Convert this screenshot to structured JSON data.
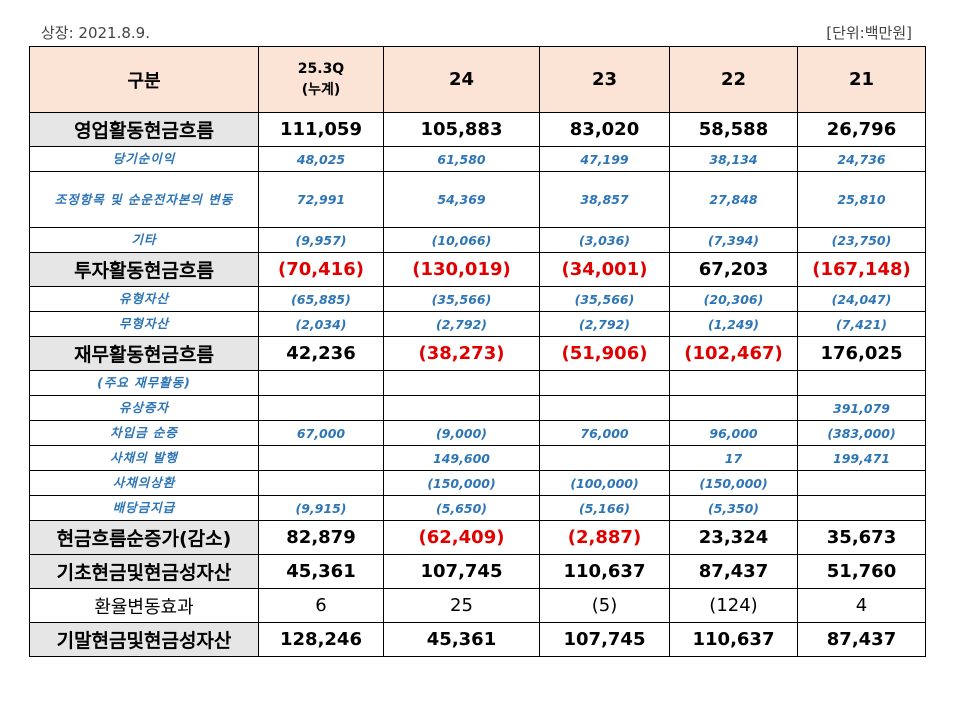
{
  "caption": {
    "listing": "상장: 2021.8.9.",
    "unit": "[단위:백만원]"
  },
  "header": {
    "label": "구분",
    "col1_line1": "25.3Q",
    "col1_line2": "(누계)",
    "col2": "24",
    "col3": "23",
    "col4": "22",
    "col5": "21"
  },
  "rows": [
    {
      "label": "영업활동현금흐름",
      "v": [
        "111,059",
        "105,883",
        "83,020",
        "58,588",
        "26,796"
      ]
    },
    {
      "label": "당기순이익",
      "v": [
        "48,025",
        "61,580",
        "47,199",
        "38,134",
        "24,736"
      ]
    },
    {
      "label": "조정항목 및 순운전자본의 변동",
      "v": [
        "72,991",
        "54,369",
        "38,857",
        "27,848",
        "25,810"
      ]
    },
    {
      "label": "기타",
      "v": [
        "(9,957)",
        "(10,066)",
        "(3,036)",
        "(7,394)",
        "(23,750)"
      ]
    },
    {
      "label": "투자활동현금흐름",
      "v": [
        "(70,416)",
        "(130,019)",
        "(34,001)",
        "67,203",
        "(167,148)"
      ]
    },
    {
      "label": "유형자산",
      "v": [
        "(65,885)",
        "(35,566)",
        "(35,566)",
        "(20,306)",
        "(24,047)"
      ]
    },
    {
      "label": "무형자산",
      "v": [
        "(2,034)",
        "(2,792)",
        "(2,792)",
        "(1,249)",
        "(7,421)"
      ]
    },
    {
      "label": "재무활동현금흐름",
      "v": [
        "42,236",
        "(38,273)",
        "(51,906)",
        "(102,467)",
        "176,025"
      ]
    },
    {
      "label": "(주요 재무활동)",
      "v": [
        "",
        "",
        "",
        "",
        ""
      ]
    },
    {
      "label": "유상증자",
      "v": [
        "",
        "",
        "",
        "",
        "391,079"
      ]
    },
    {
      "label": "차입금 순증",
      "v": [
        "67,000",
        "(9,000)",
        "76,000",
        "96,000",
        "(383,000)"
      ]
    },
    {
      "label": "사채의 발행",
      "v": [
        "",
        "149,600",
        "",
        "17",
        "199,471"
      ]
    },
    {
      "label": "사채의상환",
      "v": [
        "",
        "(150,000)",
        "(100,000)",
        "(150,000)",
        ""
      ]
    },
    {
      "label": "배당금지급",
      "v": [
        "(9,915)",
        "(5,650)",
        "(5,166)",
        "(5,350)",
        ""
      ]
    },
    {
      "label": "현금흐름순증가(감소)",
      "v": [
        "82,879",
        "(62,409)",
        "(2,887)",
        "23,324",
        "35,673"
      ]
    },
    {
      "label": "기초현금및현금성자산",
      "v": [
        "45,361",
        "107,745",
        "110,637",
        "87,437",
        "51,760"
      ]
    },
    {
      "label": "환율변동효과",
      "v": [
        "6",
        "25",
        "(5)",
        "(124)",
        "4"
      ]
    },
    {
      "label": "기말현금및현금성자산",
      "v": [
        "128,246",
        "45,361",
        "107,745",
        "110,637",
        "87,437"
      ]
    }
  ]
}
